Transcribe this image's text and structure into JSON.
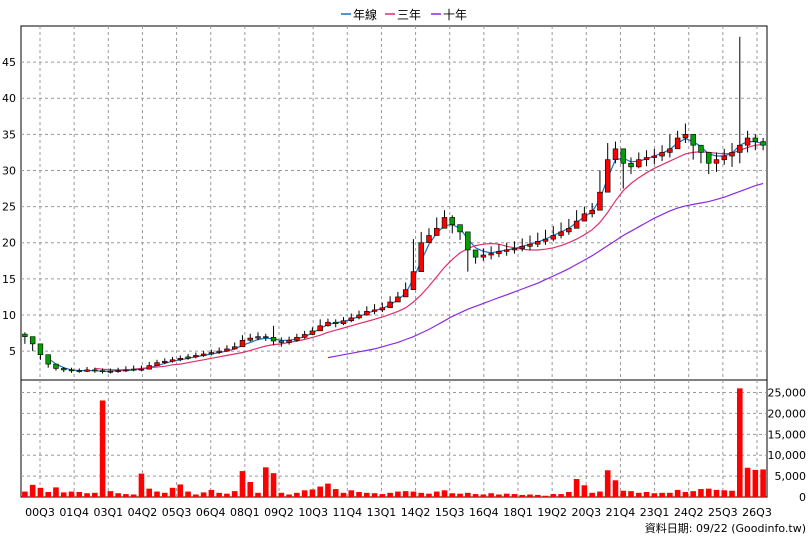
{
  "chart_data": {
    "type": "candlestick-volume",
    "legend": {
      "placement": "top-center",
      "items": [
        {
          "label": "年線",
          "color": "#1a6fc4"
        },
        {
          "label": "三年",
          "color": "#e0306a"
        },
        {
          "label": "十年",
          "color": "#8a2be2"
        }
      ]
    },
    "price_axis": {
      "ylim": [
        1,
        50
      ],
      "ticks": [
        "5",
        "10",
        "15",
        "20",
        "25",
        "30",
        "35",
        "40",
        "45"
      ],
      "grid": true
    },
    "volume_axis": {
      "ylim": [
        0,
        28000
      ],
      "ticks": [
        "0",
        "5,000",
        "10,000",
        "15,000",
        "20,000",
        "25,000"
      ],
      "grid": true
    },
    "x_ticks": [
      "00Q3",
      "01Q4",
      "03Q1",
      "04Q2",
      "05Q3",
      "06Q4",
      "08Q1",
      "09Q2",
      "10Q3",
      "11Q4",
      "13Q1",
      "14Q2",
      "15Q3",
      "16Q4",
      "18Q1",
      "19Q2",
      "20Q3",
      "21Q4",
      "23Q1",
      "24Q2",
      "25Q3",
      "26Q3"
    ],
    "candle_close": [
      7.0,
      6.0,
      4.5,
      3.2,
      2.6,
      2.4,
      2.3,
      2.2,
      2.4,
      2.3,
      2.2,
      2.2,
      2.3,
      2.4,
      2.5,
      2.5,
      3.0,
      3.4,
      3.6,
      3.8,
      4.0,
      4.2,
      4.4,
      4.6,
      4.8,
      5.0,
      5.3,
      5.6,
      6.5,
      6.8,
      7.0,
      6.9,
      6.4,
      6.2,
      6.5,
      6.9,
      7.3,
      7.8,
      8.5,
      9.0,
      8.8,
      9.2,
      9.6,
      10.0,
      10.5,
      10.7,
      11.0,
      11.8,
      12.5,
      13.5,
      16.0,
      20.0,
      21.0,
      22.0,
      23.5,
      22.5,
      21.5,
      19.0,
      18.0,
      18.3,
      18.5,
      18.8,
      19.0,
      19.2,
      19.5,
      19.8,
      20.2,
      20.5,
      21.0,
      21.5,
      22.0,
      23.0,
      24.0,
      24.5,
      27.0,
      31.5,
      33.0,
      31.0,
      30.5,
      31.5,
      31.8,
      32.0,
      32.5,
      33.0,
      34.5,
      35.0,
      33.5,
      32.5,
      31.0,
      31.5,
      32.0,
      32.5,
      33.5,
      34.5,
      34.0,
      33.5
    ],
    "candle_high": [
      7.6,
      6.6,
      5.0,
      3.6,
      3.0,
      2.8,
      2.7,
      2.6,
      2.8,
      2.7,
      2.6,
      2.6,
      2.7,
      2.9,
      3.0,
      3.0,
      3.5,
      3.8,
      4.0,
      4.2,
      4.4,
      4.6,
      4.8,
      5.0,
      5.2,
      5.5,
      5.8,
      6.2,
      7.2,
      7.4,
      7.6,
      7.4,
      8.5,
      6.9,
      7.0,
      7.4,
      7.8,
      8.3,
      9.4,
      9.5,
      9.4,
      9.7,
      10.2,
      10.6,
      11.2,
      11.5,
      11.7,
      12.6,
      13.2,
      14.5,
      20.5,
      21.5,
      22.0,
      23.5,
      24.5,
      23.8,
      22.5,
      20.0,
      19.0,
      19.2,
      19.5,
      19.8,
      20.0,
      20.2,
      20.6,
      21.0,
      21.4,
      21.8,
      22.3,
      22.8,
      23.3,
      24.5,
      25.0,
      25.5,
      30.0,
      33.8,
      34.0,
      32.0,
      31.8,
      32.5,
      32.8,
      33.0,
      33.5,
      35.0,
      35.5,
      36.5,
      34.5,
      33.5,
      32.5,
      32.5,
      33.0,
      33.8,
      48.5,
      35.5,
      35.0,
      34.5
    ],
    "candle_low": [
      6.0,
      5.0,
      3.8,
      2.7,
      2.3,
      2.1,
      2.0,
      2.0,
      2.1,
      2.0,
      1.9,
      1.9,
      2.0,
      2.1,
      2.2,
      2.2,
      2.7,
      3.0,
      3.2,
      3.4,
      3.6,
      3.8,
      4.0,
      4.2,
      4.4,
      4.6,
      4.9,
      5.2,
      6.0,
      6.3,
      6.5,
      6.4,
      5.8,
      5.6,
      5.9,
      6.3,
      6.7,
      7.2,
      7.8,
      8.4,
      8.3,
      8.6,
      9.0,
      9.4,
      9.9,
      10.1,
      10.4,
      11.1,
      11.9,
      12.8,
      15.3,
      19.3,
      20.2,
      21.2,
      22.6,
      21.3,
      20.4,
      16.0,
      17.1,
      17.5,
      17.7,
      18.0,
      18.2,
      18.5,
      18.8,
      19.0,
      19.4,
      19.7,
      20.2,
      20.6,
      21.1,
      22.2,
      23.0,
      23.5,
      25.0,
      29.5,
      31.0,
      27.5,
      29.5,
      30.3,
      30.6,
      30.9,
      31.3,
      31.8,
      33.3,
      33.8,
      31.5,
      31.0,
      29.5,
      29.8,
      30.8,
      30.5,
      31.0,
      32.5,
      32.8,
      32.8
    ],
    "ma_year": [
      null,
      null,
      null,
      4.0,
      3.2,
      2.7,
      2.4,
      2.3,
      2.3,
      2.3,
      2.2,
      2.2,
      2.3,
      2.3,
      2.4,
      2.5,
      2.7,
      3.0,
      3.3,
      3.6,
      3.8,
      4.0,
      4.2,
      4.4,
      4.6,
      4.8,
      5.0,
      5.3,
      5.8,
      6.2,
      6.6,
      6.8,
      6.7,
      6.5,
      6.5,
      6.7,
      7.0,
      7.5,
      8.1,
      8.7,
      8.9,
      9.1,
      9.4,
      9.8,
      10.2,
      10.6,
      10.9,
      11.4,
      12.1,
      13.0,
      15.0,
      17.5,
      19.8,
      21.3,
      22.4,
      22.5,
      22.0,
      20.5,
      19.3,
      18.8,
      18.6,
      18.8,
      19.0,
      19.2,
      19.5,
      19.8,
      20.1,
      20.5,
      21.0,
      21.5,
      22.0,
      22.8,
      23.6,
      24.3,
      26.0,
      29.0,
      31.5,
      31.7,
      31.2,
      31.3,
      31.6,
      32.0,
      32.4,
      32.9,
      33.8,
      34.4,
      34.0,
      33.3,
      32.3,
      32.0,
      32.0,
      32.4,
      33.5,
      34.0,
      34.0,
      33.7
    ],
    "ma_3y": [
      null,
      null,
      null,
      null,
      null,
      null,
      null,
      null,
      null,
      2.6,
      2.5,
      2.4,
      2.4,
      2.4,
      2.5,
      2.6,
      2.7,
      2.8,
      2.9,
      3.1,
      3.2,
      3.4,
      3.6,
      3.8,
      4.0,
      4.2,
      4.4,
      4.6,
      4.8,
      5.1,
      5.4,
      5.7,
      5.9,
      6.0,
      6.2,
      6.4,
      6.6,
      6.9,
      7.2,
      7.6,
      7.9,
      8.2,
      8.5,
      8.8,
      9.1,
      9.4,
      9.7,
      10.1,
      10.5,
      11.0,
      11.8,
      12.8,
      14.0,
      15.3,
      16.6,
      17.7,
      18.6,
      19.2,
      19.6,
      19.8,
      19.9,
      19.8,
      19.5,
      19.3,
      19.1,
      19.0,
      19.0,
      19.1,
      19.3,
      19.6,
      20.0,
      20.5,
      21.1,
      21.8,
      22.8,
      24.2,
      25.8,
      27.2,
      28.2,
      29.0,
      29.7,
      30.3,
      30.8,
      31.3,
      31.8,
      32.3,
      32.5,
      32.6,
      32.5,
      32.4,
      32.3,
      32.4,
      32.8,
      33.2,
      33.5,
      33.6
    ],
    "ma_10y": [
      null,
      null,
      null,
      null,
      null,
      null,
      null,
      null,
      null,
      null,
      null,
      null,
      null,
      null,
      null,
      null,
      null,
      null,
      null,
      null,
      null,
      null,
      null,
      null,
      null,
      null,
      null,
      null,
      null,
      null,
      null,
      null,
      null,
      null,
      null,
      null,
      null,
      null,
      null,
      4.1,
      4.3,
      4.5,
      4.7,
      4.9,
      5.1,
      5.3,
      5.6,
      5.9,
      6.2,
      6.6,
      7.0,
      7.5,
      8.0,
      8.6,
      9.2,
      9.8,
      10.3,
      10.8,
      11.2,
      11.6,
      12.0,
      12.4,
      12.8,
      13.2,
      13.6,
      14.0,
      14.4,
      14.9,
      15.4,
      15.9,
      16.4,
      17.0,
      17.6,
      18.2,
      18.9,
      19.6,
      20.3,
      21.0,
      21.6,
      22.2,
      22.8,
      23.4,
      23.9,
      24.4,
      24.8,
      25.1,
      25.3,
      25.5,
      25.7,
      26.0,
      26.3,
      26.7,
      27.1,
      27.5,
      27.9,
      28.2
    ],
    "volume": [
      1300,
      2900,
      2200,
      1200,
      2300,
      1100,
      1300,
      1200,
      900,
      1000,
      23100,
      1400,
      900,
      700,
      600,
      5600,
      2000,
      1300,
      1000,
      2200,
      3000,
      1300,
      600,
      1100,
      1700,
      1000,
      800,
      1400,
      6200,
      3600,
      1000,
      7100,
      5700,
      1000,
      600,
      1000,
      1600,
      1800,
      2500,
      3200,
      1900,
      1000,
      1600,
      1200,
      1000,
      900,
      700,
      1000,
      1300,
      1400,
      1300,
      1000,
      800,
      1300,
      1600,
      900,
      800,
      1000,
      700,
      600,
      900,
      600,
      800,
      700,
      500,
      600,
      500,
      300,
      700,
      700,
      1200,
      4300,
      2800,
      1000,
      1300,
      6400,
      4000,
      1500,
      1400,
      1000,
      1200,
      900,
      1000,
      1000,
      1700,
      1200,
      1400,
      1900,
      2000,
      1700,
      1600,
      1500,
      26000,
      7000,
      6500,
      6600
    ],
    "volume_color": "#ff0000",
    "up_color": "#ff0000",
    "down_color": "#00a000",
    "source_note": "資料日期: 09/22 (Goodinfo.tw)"
  }
}
